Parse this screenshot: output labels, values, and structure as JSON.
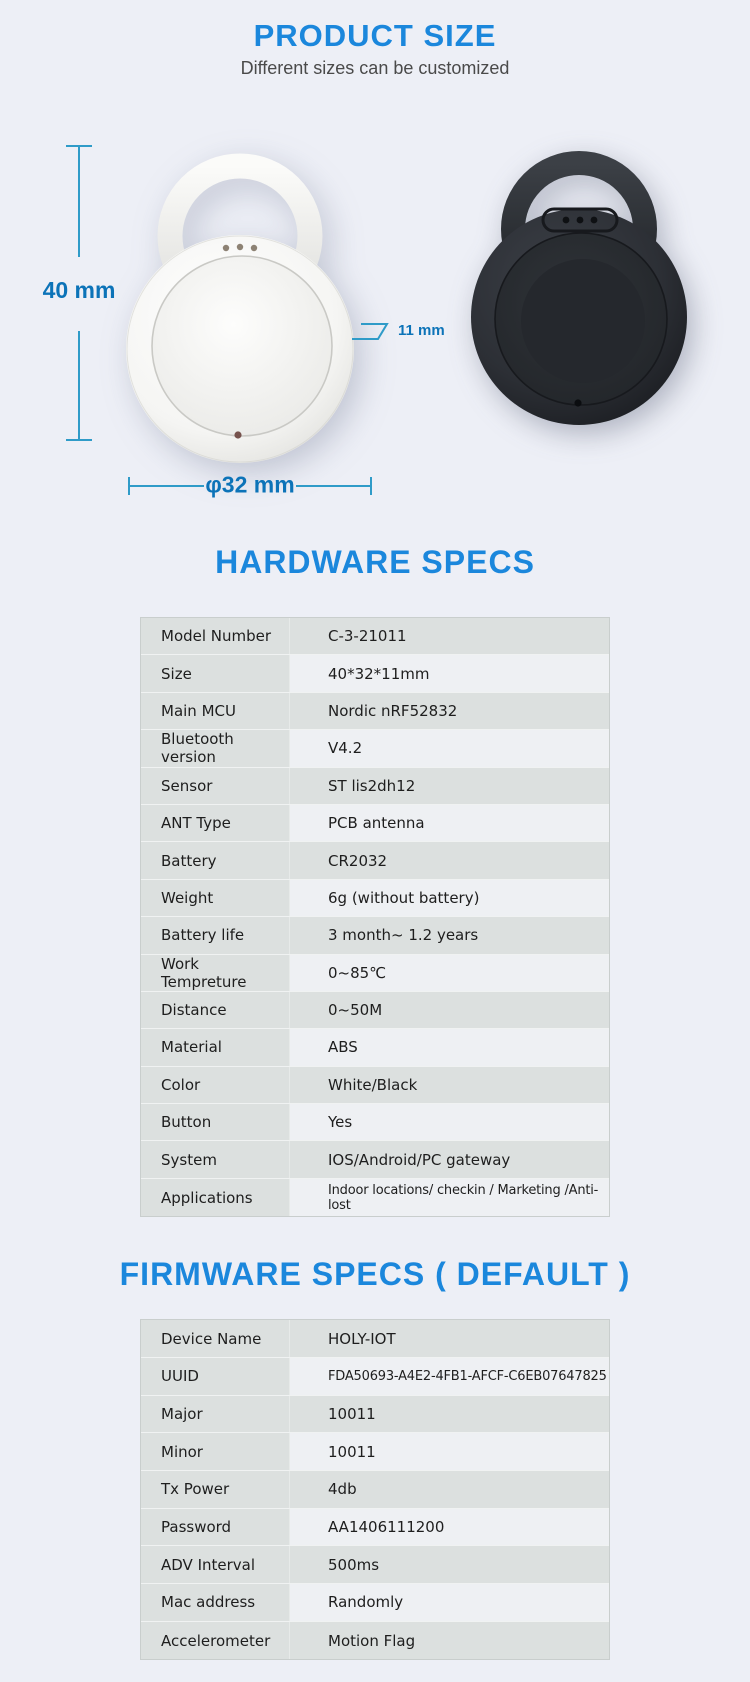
{
  "colors": {
    "accent_blue": "#1b87dc",
    "dimension_text_blue": "#0c73b8",
    "dimension_line_teal": "#2f9bc8",
    "page_background": "#edeff6",
    "table_gray_cell": "#dce0df",
    "table_light_cell": "#eef0f3"
  },
  "product_size": {
    "title": "PRODUCT SIZE",
    "subtitle": "Different sizes can be customized",
    "dimensions": {
      "height": "40 mm",
      "thickness": "11 mm",
      "diameter": "φ32 mm"
    }
  },
  "hardware_specs": {
    "title": "HARDWARE SPECS",
    "rows": [
      {
        "label": "Model Number",
        "value": "C-3-21011"
      },
      {
        "label": "Size",
        "value": "40*32*11mm"
      },
      {
        "label": "Main MCU",
        "value": "Nordic nRF52832"
      },
      {
        "label": "Bluetooth version",
        "value": "V4.2"
      },
      {
        "label": "Sensor",
        "value": "ST lis2dh12"
      },
      {
        "label": "ANT Type",
        "value": "PCB antenna"
      },
      {
        "label": "Battery",
        "value": "CR2032"
      },
      {
        "label": "Weight",
        "value": "6g (without battery)"
      },
      {
        "label": "Battery life",
        "value": "3 month~ 1.2 years"
      },
      {
        "label": "Work Tempreture",
        "value": "0~85℃"
      },
      {
        "label": "Distance",
        "value": "0~50M"
      },
      {
        "label": "Material",
        "value": "ABS"
      },
      {
        "label": "Color",
        "value": "White/Black"
      },
      {
        "label": "Button",
        "value": "Yes"
      },
      {
        "label": "System",
        "value": "IOS/Android/PC gateway"
      },
      {
        "label": "Applications",
        "value": "Indoor locations/ checkin / Marketing /Anti-lost",
        "small": true
      }
    ]
  },
  "firmware_specs": {
    "title": "FIRMWARE SPECS ( DEFAULT )",
    "rows": [
      {
        "label": "Device Name",
        "value": "HOLY-IOT"
      },
      {
        "label": "UUID",
        "value": "FDA50693-A4E2-4FB1-AFCF-C6EB07647825",
        "small": true
      },
      {
        "label": "Major",
        "value": "10011"
      },
      {
        "label": "Minor",
        "value": "10011"
      },
      {
        "label": "Tx Power",
        "value": "4db"
      },
      {
        "label": "Password",
        "value": "AA1406111200"
      },
      {
        "label": "ADV Interval",
        "value": "500ms"
      },
      {
        "label": "Mac address",
        "value": "Randomly"
      },
      {
        "label": "Accelerometer",
        "value": "Motion Flag"
      }
    ]
  }
}
